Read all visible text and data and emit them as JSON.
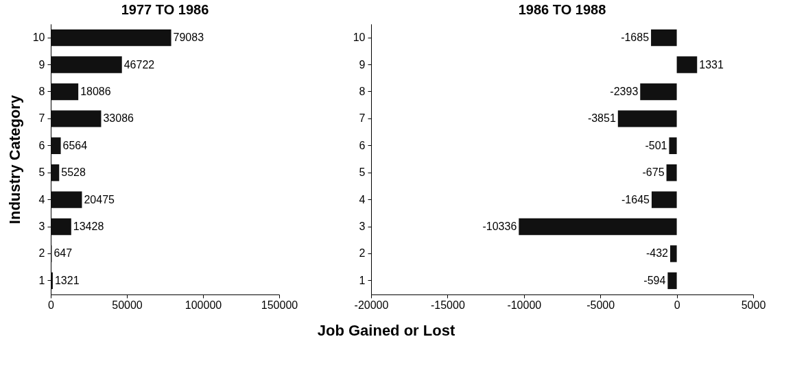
{
  "chart_data": [
    {
      "type": "bar",
      "orientation": "horizontal",
      "title": "1977  TO  1986",
      "ylabel": "Industry Category",
      "xlabel": "Job Gained or Lost",
      "categories": [
        "10",
        "9",
        "8",
        "7",
        "6",
        "5",
        "4",
        "3",
        "2",
        "1"
      ],
      "values": [
        79083,
        46722,
        18086,
        33086,
        6564,
        5528,
        20475,
        13428,
        647,
        1321
      ],
      "color": "#111111",
      "xlim": [
        0,
        150000
      ],
      "xticks": [
        0,
        50000,
        100000,
        150000
      ],
      "data_labels": true,
      "grid": false
    },
    {
      "type": "bar",
      "orientation": "horizontal",
      "title": "1986  TO  1988",
      "categories": [
        "10",
        "9",
        "8",
        "7",
        "6",
        "5",
        "4",
        "3",
        "2",
        "1"
      ],
      "values": [
        -1685,
        1331,
        -2393,
        -3851,
        -501,
        -675,
        -1645,
        -10336,
        -432,
        -594
      ],
      "color": "#111111",
      "xlim": [
        -20000,
        5000
      ],
      "xticks": [
        -20000,
        -15000,
        -10000,
        -5000,
        0,
        5000
      ],
      "data_labels": true,
      "grid": false
    }
  ]
}
